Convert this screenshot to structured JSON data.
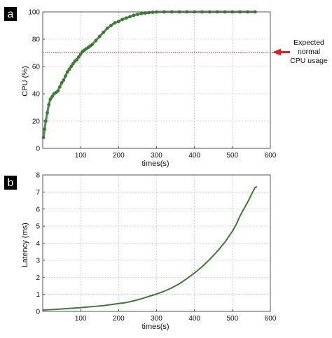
{
  "figure": {
    "annotation": {
      "lines": [
        "Expected",
        "normal",
        "CPU usage"
      ],
      "arrow_color": "#e02020"
    }
  },
  "chart_data": [
    {
      "type": "scatter",
      "panel_label": "a",
      "title": "",
      "xlabel": "times(s)",
      "ylabel": "CPU (%)",
      "xlim": [
        0,
        600
      ],
      "ylim": [
        0,
        100
      ],
      "xticks": [
        100,
        200,
        300,
        400,
        500,
        600
      ],
      "yticks": [
        0,
        20,
        40,
        60,
        80,
        100
      ],
      "grid": true,
      "series_color": "#3a7d32",
      "reference_line": {
        "y": 70,
        "color": "#d03030",
        "style": "dotted"
      },
      "series": [
        {
          "x": [
            2,
            5,
            8,
            12,
            16,
            20,
            25,
            30,
            35,
            40,
            45,
            50,
            55,
            60,
            65,
            70,
            75,
            80,
            85,
            90,
            95,
            100,
            105,
            110,
            115,
            120,
            125,
            130,
            140,
            150,
            160,
            170,
            180,
            190,
            200,
            210,
            220,
            230,
            240,
            250,
            260,
            270,
            280,
            290,
            300,
            320,
            340,
            360,
            380,
            400,
            420,
            440,
            460,
            480,
            500,
            520,
            540,
            560
          ],
          "y": [
            8,
            14,
            20,
            26,
            32,
            36,
            38,
            40,
            41,
            42,
            45,
            48,
            50,
            53,
            56,
            58,
            60,
            62,
            64,
            65,
            67,
            69,
            71,
            72,
            73,
            74,
            75,
            76,
            79,
            82,
            85,
            88,
            90,
            92,
            93,
            94.5,
            95.5,
            96.5,
            97.5,
            98.2,
            98.8,
            99.2,
            99.5,
            99.7,
            99.9,
            100,
            100,
            100,
            100,
            100,
            100,
            100,
            100,
            100,
            100,
            100,
            100,
            100
          ]
        }
      ]
    },
    {
      "type": "line",
      "panel_label": "b",
      "title": "",
      "xlabel": "times(s)",
      "ylabel": "Latency (ms)",
      "xlim": [
        0,
        600
      ],
      "ylim": [
        0,
        8
      ],
      "xticks": [
        100,
        200,
        300,
        400,
        500,
        600
      ],
      "yticks": [
        0,
        1,
        2,
        3,
        4,
        5,
        6,
        7,
        8
      ],
      "grid": true,
      "series_color": "#3a7d32",
      "series": [
        {
          "x": [
            0,
            20,
            40,
            60,
            80,
            100,
            120,
            140,
            160,
            180,
            200,
            220,
            240,
            260,
            280,
            300,
            320,
            340,
            360,
            380,
            400,
            420,
            440,
            460,
            480,
            500,
            510,
            520,
            530,
            540,
            550,
            560,
            565
          ],
          "y": [
            0.08,
            0.1,
            0.13,
            0.16,
            0.19,
            0.22,
            0.26,
            0.3,
            0.34,
            0.4,
            0.46,
            0.52,
            0.62,
            0.74,
            0.88,
            1.02,
            1.18,
            1.38,
            1.62,
            1.92,
            2.25,
            2.62,
            3.05,
            3.52,
            4.05,
            4.7,
            5.1,
            5.6,
            6.0,
            6.4,
            6.85,
            7.28,
            7.3
          ]
        }
      ]
    }
  ]
}
